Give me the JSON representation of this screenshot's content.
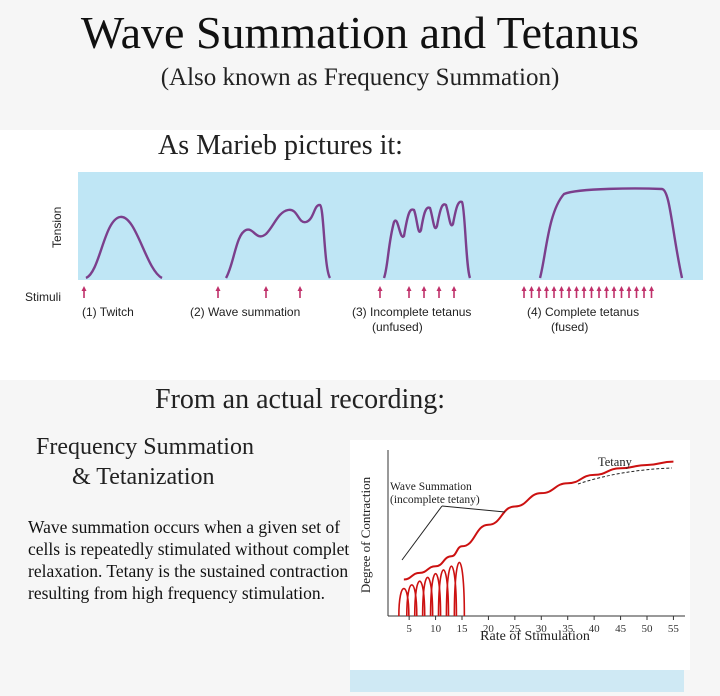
{
  "header": {
    "title": "Wave Summation and Tetanus",
    "subtitle": "(Also known as Frequency Summation)"
  },
  "marieb": {
    "heading": "As Marieb pictures it:",
    "y_label": "Tension",
    "stimuli_label": "Stimuli",
    "panel_color": "#bfe6f5",
    "curve_color": "#7b3f8c",
    "arrow_color": "#c0306a",
    "cases": [
      {
        "number": "(1)",
        "label_line1": "Twitch",
        "label_line2": ""
      },
      {
        "number": "(2)",
        "label_line1": "Wave summation",
        "label_line2": ""
      },
      {
        "number": "(3)",
        "label_line1": "Incomplete tetanus",
        "label_line2": "(unfused)"
      },
      {
        "number": "(4)",
        "label_line1": "Complete tetanus",
        "label_line2": "(fused)"
      }
    ]
  },
  "recording": {
    "heading": "From an actual recording:",
    "section_title_line1": "Frequency Summation",
    "section_title_line2": "& Tetanization",
    "description": "Wave summation occurs when a given set of cells is repeatedly stimulated without complete relaxation.  Tetany is the sustained contraction resulting from high frequency stimulation.",
    "annotation_wave_line1": "Wave Summation",
    "annotation_wave_line2": "(incomplete tetany)",
    "annotation_tetany": "Tetany",
    "line_color": "#cc1111"
  },
  "chart_data": {
    "type": "line",
    "xlabel": "Rate of Stimulation",
    "ylabel": "Degree of Contraction",
    "x_ticks": [
      "5",
      "10",
      "15",
      "20",
      "25",
      "30",
      "35",
      "40",
      "45",
      "50",
      "55"
    ],
    "xlim": [
      1,
      57
    ],
    "ylim": [
      0,
      1
    ],
    "series": [
      {
        "x": [
          4,
          7,
          10,
          13,
          15,
          20,
          25,
          30,
          35,
          40,
          45,
          50,
          55
        ],
        "y": [
          0.22,
          0.26,
          0.3,
          0.36,
          0.42,
          0.55,
          0.66,
          0.74,
          0.8,
          0.85,
          0.89,
          0.91,
          0.93
        ]
      }
    ]
  }
}
